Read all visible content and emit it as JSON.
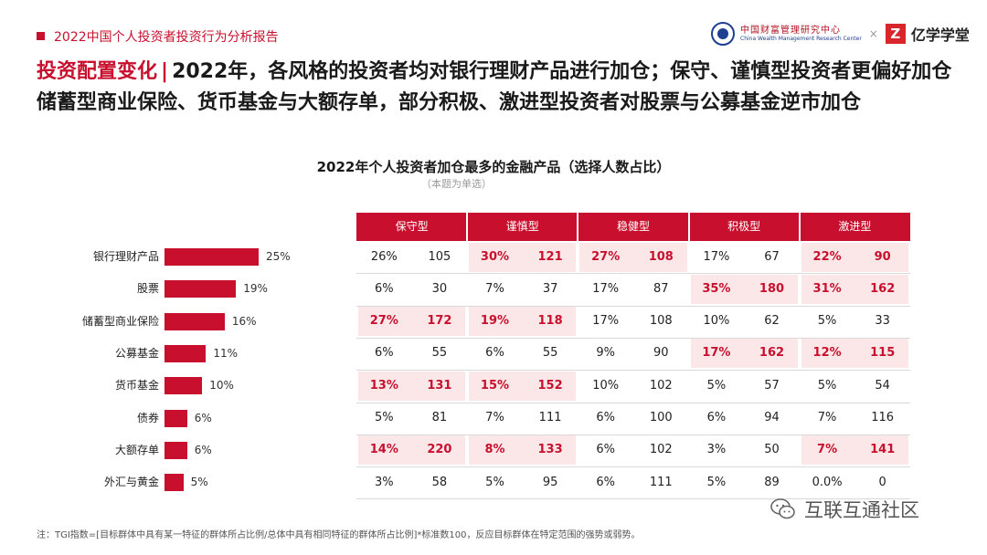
{
  "header": {
    "report_title": "2022中国个人投资者投资行为分析报告",
    "org_name": "中国财富管理研究中心",
    "org_name_en": "China Wealth Management Research Center",
    "times_sign": "×",
    "brand_icon": "Z",
    "brand_name": "亿学学堂"
  },
  "headline": {
    "key": "投资配置变化",
    "separator": "|",
    "text": "2022年，各风格的投资者均对银行理财产品进行加仓；保守、谨慎型投资者更偏好加仓储蓄型商业保险、货币基金与大额存单，部分积极、激进型投资者对股票与公募基金逆市加仓"
  },
  "chart_data": {
    "type": "bar",
    "title": "2022年个人投资者加仓最多的金融产品（选择人数占比）",
    "subtitle": "（本题为单选）",
    "categories": [
      "银行理财产品",
      "股票",
      "储蓄型商业保险",
      "公募基金",
      "货币基金",
      "债券",
      "大额存单",
      "外汇与黄金"
    ],
    "values": [
      25,
      19,
      16,
      11,
      10,
      6,
      6,
      5
    ],
    "value_labels": [
      "25%",
      "19%",
      "16%",
      "11%",
      "10%",
      "6%",
      "6%",
      "5%"
    ],
    "unit": "%",
    "xlim": [
      0,
      25
    ]
  },
  "table": {
    "groups": [
      "保守型",
      "谨慎型",
      "稳健型",
      "积极型",
      "激进型"
    ],
    "rows": [
      {
        "cells": [
          [
            "26%",
            "105"
          ],
          [
            "30%",
            "121"
          ],
          [
            "27%",
            "108"
          ],
          [
            "17%",
            "67"
          ],
          [
            "22%",
            "90"
          ]
        ],
        "hot": [
          false,
          true,
          true,
          false,
          true
        ]
      },
      {
        "cells": [
          [
            "6%",
            "30"
          ],
          [
            "7%",
            "37"
          ],
          [
            "17%",
            "87"
          ],
          [
            "35%",
            "180"
          ],
          [
            "31%",
            "162"
          ]
        ],
        "hot": [
          false,
          false,
          false,
          true,
          true
        ]
      },
      {
        "cells": [
          [
            "27%",
            "172"
          ],
          [
            "19%",
            "118"
          ],
          [
            "17%",
            "108"
          ],
          [
            "10%",
            "62"
          ],
          [
            "5%",
            "33"
          ]
        ],
        "hot": [
          true,
          true,
          false,
          false,
          false
        ]
      },
      {
        "cells": [
          [
            "6%",
            "55"
          ],
          [
            "6%",
            "55"
          ],
          [
            "9%",
            "90"
          ],
          [
            "17%",
            "162"
          ],
          [
            "12%",
            "115"
          ]
        ],
        "hot": [
          false,
          false,
          false,
          true,
          true
        ]
      },
      {
        "cells": [
          [
            "13%",
            "131"
          ],
          [
            "15%",
            "152"
          ],
          [
            "10%",
            "102"
          ],
          [
            "5%",
            "57"
          ],
          [
            "5%",
            "54"
          ]
        ],
        "hot": [
          true,
          true,
          false,
          false,
          false
        ]
      },
      {
        "cells": [
          [
            "5%",
            "81"
          ],
          [
            "7%",
            "111"
          ],
          [
            "6%",
            "100"
          ],
          [
            "6%",
            "94"
          ],
          [
            "7%",
            "116"
          ]
        ],
        "hot": [
          false,
          false,
          false,
          false,
          false
        ]
      },
      {
        "cells": [
          [
            "14%",
            "220"
          ],
          [
            "8%",
            "133"
          ],
          [
            "6%",
            "102"
          ],
          [
            "3%",
            "50"
          ],
          [
            "7%",
            "141"
          ]
        ],
        "hot": [
          true,
          true,
          false,
          false,
          true
        ]
      },
      {
        "cells": [
          [
            "3%",
            "58"
          ],
          [
            "5%",
            "95"
          ],
          [
            "6%",
            "111"
          ],
          [
            "5%",
            "89"
          ],
          [
            "0.0%",
            "0"
          ]
        ],
        "hot": [
          false,
          false,
          false,
          false,
          false
        ]
      }
    ]
  },
  "footnote": "注：TGI指数=[目标群体中具有某一特征的群体所占比例/总体中具有相同特征的群体所占比例]*标准数100，反应目标群体在特定范围的强势或弱势。",
  "watermark": {
    "text": "互联互通社区",
    "icon": "wechat-icon"
  },
  "colors": {
    "accent": "#c8102e",
    "highlight_bg": "#fbe6e8"
  }
}
